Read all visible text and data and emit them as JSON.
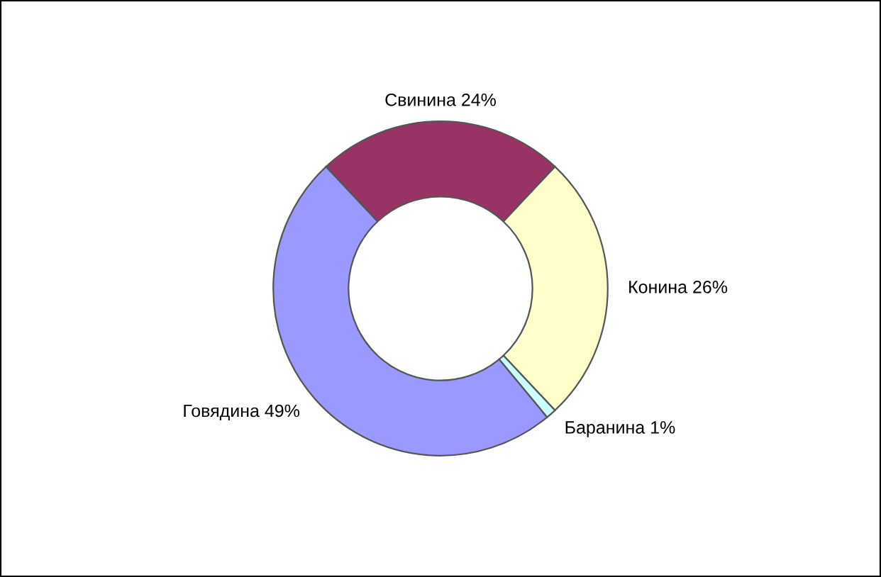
{
  "chart_data": {
    "type": "donut",
    "categories": [
      "Свинина",
      "Конина",
      "Баранина",
      "Говядина"
    ],
    "values": [
      24,
      26,
      1,
      49
    ],
    "value_labels": [
      "24%",
      "26%",
      "1%",
      "49%"
    ],
    "colors": [
      "#993366",
      "#ffffcc",
      "#ccffff",
      "#9999ff"
    ],
    "legend": false
  }
}
